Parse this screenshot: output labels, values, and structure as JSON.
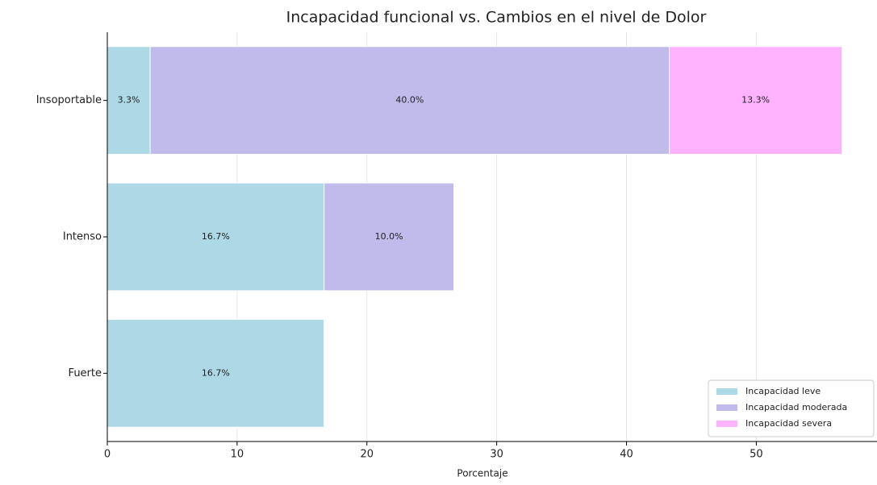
{
  "chart_data": {
    "type": "barh_stacked",
    "title": "Incapacidad funcional vs. Cambios en el nivel de Dolor",
    "xlabel": "Porcentaje",
    "categories": [
      "Fuerte",
      "Intenso",
      "Insoportable"
    ],
    "series": [
      {
        "name": "Incapacidad leve",
        "color": "#add8e6",
        "values": [
          16.7,
          16.7,
          3.3
        ],
        "value_labels": [
          "16.7%",
          "16.7%",
          "3.3%"
        ]
      },
      {
        "name": "Incapacidad moderada",
        "color": "#c0bbeb",
        "values": [
          0,
          10.0,
          40.0
        ],
        "value_labels": [
          null,
          "10.0%",
          "40.0%"
        ]
      },
      {
        "name": "Incapacidad severa",
        "color": "#ffb3ff",
        "values": [
          0,
          0,
          13.3
        ],
        "value_labels": [
          null,
          null,
          "13.3%"
        ]
      }
    ],
    "xlim": [
      0,
      59.3
    ],
    "xticks": [
      0,
      10,
      20,
      30,
      40,
      50
    ],
    "grid": true,
    "legend": "lower right"
  }
}
